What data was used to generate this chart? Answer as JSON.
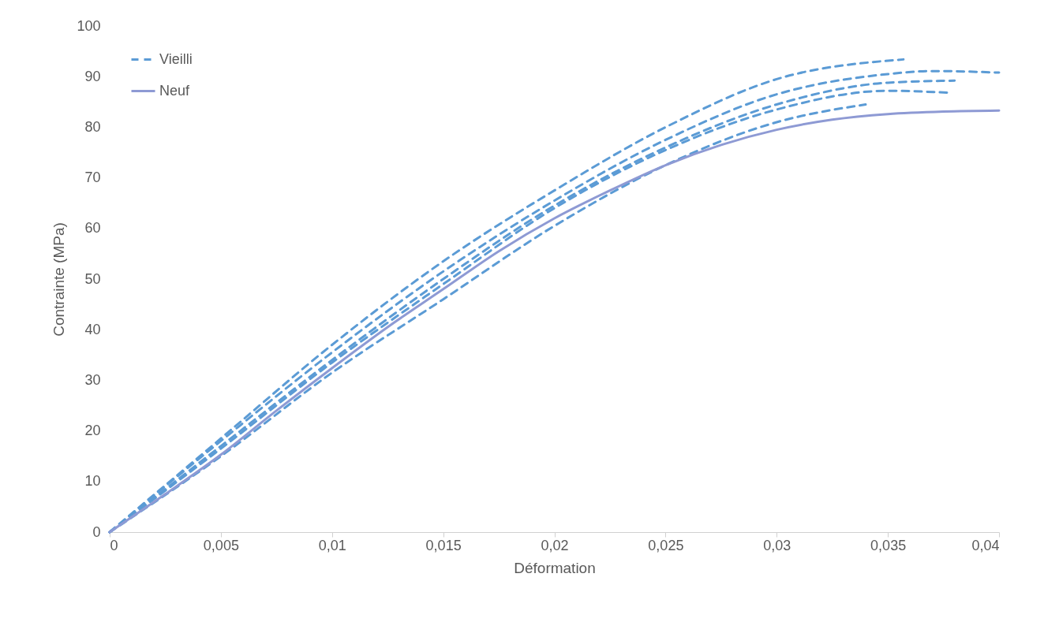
{
  "chart_data": {
    "type": "line",
    "xlabel": "Déformation",
    "ylabel": "Contrainte (MPa)",
    "xlim": [
      0,
      0.04
    ],
    "ylim": [
      0,
      100
    ],
    "xticks": [
      0,
      {
        "value": 0.005,
        "label": "0,005"
      },
      {
        "value": 0.01,
        "label": "0,01"
      },
      {
        "value": 0.015,
        "label": "0,015"
      },
      {
        "value": 0.02,
        "label": "0,02"
      },
      {
        "value": 0.025,
        "label": "0,025"
      },
      {
        "value": 0.03,
        "label": "0,03"
      },
      {
        "value": 0.035,
        "label": "0,035"
      },
      {
        "value": 0.04,
        "label": "0,04"
      }
    ],
    "yticks": [
      0,
      10,
      20,
      30,
      40,
      50,
      60,
      70,
      80,
      90,
      100
    ],
    "grid": false,
    "legend": "top left",
    "marker": "none",
    "series": [
      {
        "name": "Vieilli",
        "color": "#5b9bd5",
        "line_style": "dashed",
        "x": [
          0,
          0.005,
          0.01,
          0.015,
          0.02,
          0.025,
          0.03,
          0.0357
        ],
        "values": [
          0,
          18.5,
          37,
          53.5,
          67.5,
          80,
          89.5,
          93.4
        ]
      },
      {
        "color": "#5b9bd5",
        "line_style": "dashed",
        "x": [
          0,
          0.005,
          0.01,
          0.015,
          0.02,
          0.025,
          0.03,
          0.035,
          0.037,
          0.04
        ],
        "values": [
          0,
          18,
          35.5,
          51.5,
          65.5,
          77.5,
          86.5,
          90.5,
          91.1,
          90.8
        ]
      },
      {
        "color": "#5b9bd5",
        "line_style": "dashed",
        "x": [
          0,
          0.005,
          0.01,
          0.015,
          0.02,
          0.025,
          0.03,
          0.035,
          0.038
        ],
        "values": [
          0,
          17,
          34,
          50,
          64.5,
          76,
          84.5,
          88.8,
          89.2
        ]
      },
      {
        "color": "#5b9bd5",
        "line_style": "dashed",
        "x": [
          0,
          0.005,
          0.01,
          0.015,
          0.02,
          0.025,
          0.03,
          0.035,
          0.0378
        ],
        "values": [
          0,
          16.5,
          33.5,
          49,
          64,
          75.5,
          83.5,
          87.2,
          86.8
        ]
      },
      {
        "color": "#5b9bd5",
        "line_style": "dashed",
        "x": [
          0,
          0.005,
          0.01,
          0.015,
          0.02,
          0.025,
          0.03,
          0.034
        ],
        "values": [
          0,
          15,
          31.5,
          46,
          60.5,
          72.5,
          81,
          84.5
        ]
      },
      {
        "name": "Neuf",
        "color": "#8e9ad4",
        "line_style": "solid",
        "x": [
          0,
          0.0025,
          0.005,
          0.0075,
          0.01,
          0.0125,
          0.015,
          0.0175,
          0.02,
          0.0225,
          0.025,
          0.0275,
          0.03,
          0.0325,
          0.035,
          0.0375,
          0.04
        ],
        "values": [
          0,
          7.5,
          15.3,
          24,
          32.4,
          40.5,
          48,
          55.5,
          62,
          67.5,
          72.5,
          76.5,
          79.5,
          81.5,
          82.6,
          83.1,
          83.3
        ]
      }
    ]
  }
}
